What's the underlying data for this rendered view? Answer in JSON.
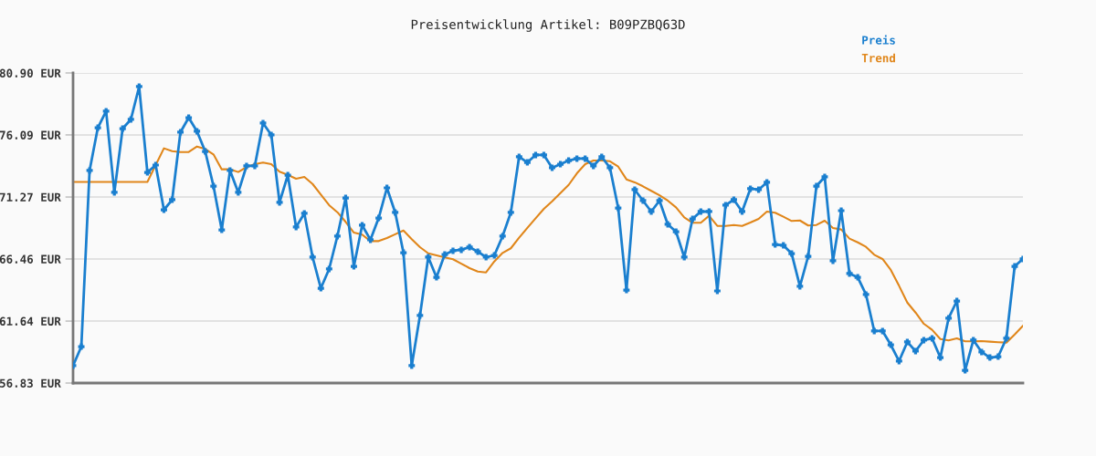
{
  "chart_data": {
    "type": "line",
    "title": "Preisentwicklung Artikel: B09PZBQ63D",
    "categories": [
      null,
      null,
      null,
      null,
      null,
      null,
      null,
      null,
      null,
      null,
      null,
      null,
      null,
      null,
      null,
      null,
      null,
      null,
      null,
      null,
      null,
      null,
      null,
      null,
      null,
      null,
      null,
      null,
      null,
      null,
      null,
      null,
      null,
      null,
      null,
      null,
      null,
      null,
      null,
      null,
      null,
      null,
      null,
      null,
      null,
      null,
      null,
      null,
      null,
      null,
      null,
      null,
      null,
      null,
      null,
      null,
      null,
      null,
      null,
      null,
      null,
      null,
      null,
      null,
      null,
      null,
      null,
      null,
      null,
      null,
      null,
      null,
      null,
      null,
      null,
      null,
      null,
      null,
      null,
      null,
      null,
      null,
      null,
      null,
      null,
      null,
      null,
      null,
      null,
      null,
      null,
      null,
      null,
      null,
      null,
      null,
      null,
      null,
      null,
      null,
      null,
      null,
      null,
      null,
      null,
      null,
      null,
      null,
      null,
      null,
      null,
      null,
      null,
      null,
      null,
      null
    ],
    "series": [
      {
        "name": "Preis",
        "color": "#1a7fcf",
        "marker": "cross",
        "values": [
          58.18,
          59.66,
          73.33,
          76.65,
          77.93,
          71.63,
          76.58,
          77.29,
          79.84,
          73.18,
          73.75,
          70.28,
          71.06,
          76.3,
          77.43,
          76.37,
          74.81,
          72.12,
          68.72,
          73.33,
          71.63,
          73.68,
          73.68,
          77.01,
          76.09,
          70.85,
          72.97,
          68.94,
          70.0,
          66.6,
          64.19,
          65.68,
          68.23,
          71.2,
          65.89,
          69.08,
          67.95,
          69.64,
          71.98,
          70.07,
          66.95,
          58.18,
          62.07,
          66.6,
          65.04,
          66.81,
          67.1,
          67.17,
          67.38,
          67.03,
          66.6,
          66.74,
          68.23,
          70.07,
          74.39,
          73.96,
          74.53,
          74.53,
          73.54,
          73.82,
          74.1,
          74.25,
          74.25,
          73.68,
          74.39,
          73.54,
          70.42,
          64.05,
          71.84,
          70.99,
          70.14,
          70.99,
          69.15,
          68.58,
          66.6,
          69.57,
          70.14,
          70.14,
          63.98,
          70.64,
          71.06,
          70.14,
          71.91,
          71.84,
          72.41,
          67.59,
          67.52,
          66.88,
          64.34,
          66.67,
          72.12,
          72.83,
          66.32,
          70.21,
          65.33,
          65.04,
          63.7,
          60.87,
          60.87,
          59.8,
          58.53,
          60.02,
          59.31,
          60.16,
          60.3,
          58.81,
          61.86,
          63.2,
          57.82,
          60.16,
          59.24,
          58.81,
          58.88,
          60.3,
          65.89,
          66.46
        ]
      },
      {
        "name": "Trend",
        "color": "#e0861a",
        "marker": "none",
        "values": [
          72.44,
          72.44,
          72.44,
          72.44,
          72.44,
          72.44,
          72.44,
          72.44,
          72.44,
          72.44,
          73.75,
          75.05,
          74.83,
          74.76,
          74.76,
          75.19,
          75.0,
          74.58,
          73.42,
          73.42,
          73.21,
          73.59,
          73.82,
          73.94,
          73.82,
          73.23,
          72.99,
          72.69,
          72.83,
          72.28,
          71.46,
          70.64,
          70.09,
          69.34,
          68.51,
          68.35,
          67.85,
          67.85,
          68.09,
          68.38,
          68.67,
          68.0,
          67.38,
          66.9,
          66.74,
          66.58,
          66.44,
          66.1,
          65.75,
          65.49,
          65.42,
          66.27,
          66.93,
          67.29,
          68.11,
          68.87,
          69.62,
          70.35,
          70.94,
          71.58,
          72.21,
          73.11,
          73.82,
          74.1,
          74.1,
          74.05,
          73.63,
          72.64,
          72.41,
          72.1,
          71.75,
          71.41,
          70.99,
          70.47,
          69.69,
          69.27,
          69.27,
          69.81,
          69.03,
          69.03,
          69.1,
          69.03,
          69.29,
          69.57,
          70.14,
          70.05,
          69.74,
          69.41,
          69.45,
          69.06,
          69.1,
          69.43,
          68.87,
          68.75,
          68.04,
          67.75,
          67.4,
          66.79,
          66.46,
          65.61,
          64.38,
          63.08,
          62.3,
          61.43,
          60.96,
          60.25,
          60.14,
          60.3,
          60.07,
          60.07,
          60.09,
          60.04,
          60.0,
          59.97,
          60.6,
          61.27
        ]
      }
    ],
    "ylim": [
      56.83,
      80.9
    ],
    "yticks": [
      {
        "value": 56.83,
        "label": "56.83 EUR"
      },
      {
        "value": 61.64,
        "label": "61.64 EUR"
      },
      {
        "value": 66.46,
        "label": "66.46 EUR"
      },
      {
        "value": 71.27,
        "label": "71.27 EUR"
      },
      {
        "value": 76.09,
        "label": "76.09 EUR"
      },
      {
        "value": 80.9,
        "label": "80.90 EUR"
      }
    ],
    "grid": "y",
    "legend": "top right",
    "tick_labels": "y",
    "line_style": "solid"
  }
}
